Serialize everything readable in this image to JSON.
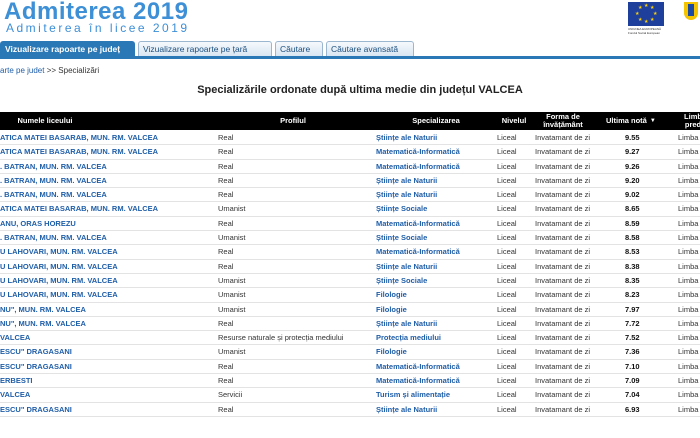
{
  "header": {
    "title": "Admiterea 2019",
    "subtitle": "Admiterea în licee 2019",
    "eu_caption": "UNIUNEA EUROPEANĂ Fondul Social European",
    "colors": {
      "brand": "#3d8fd6",
      "tab_active": "#2b78b7",
      "link": "#1f5ea8"
    }
  },
  "tabs": [
    {
      "label": "Vizualizare rapoarte pe județ",
      "active": true
    },
    {
      "label": "Vizualizare rapoarte pe țară",
      "active": false
    },
    {
      "label": "Căutare",
      "active": false
    },
    {
      "label": "Căutare avansată",
      "active": false
    }
  ],
  "breadcrumb": {
    "link": "arte pe judet",
    "separator": ">>",
    "current": "Specializări"
  },
  "page_title": "Specializările ordonate după ultima medie din județul VALCEA",
  "table": {
    "columns": [
      "Numele liceului",
      "Profilul",
      "Specializarea",
      "Nivelul",
      "Forma de învățământ",
      "Ultima notă",
      "Limb pred"
    ],
    "sort_icon": "sort-desc-icon",
    "rows": [
      {
        "school": "ATICA MATEI BASARAB, MUN. RM. VALCEA",
        "profile": "Real",
        "spec": "Științe ale Naturii",
        "level": "Liceal",
        "form": "Invatamant de zi",
        "grade": "9.55",
        "lang": "Limba"
      },
      {
        "school": "ATICA MATEI BASARAB, MUN. RM. VALCEA",
        "profile": "Real",
        "spec": "Matematică-Informatică",
        "level": "Liceal",
        "form": "Invatamant de zi",
        "grade": "9.27",
        "lang": "Limba"
      },
      {
        "school": ". BATRAN, MUN. RM. VALCEA",
        "profile": "Real",
        "spec": "Matematică-Informatică",
        "level": "Liceal",
        "form": "Invatamant de zi",
        "grade": "9.26",
        "lang": "Limba"
      },
      {
        "school": ". BATRAN, MUN. RM. VALCEA",
        "profile": "Real",
        "spec": "Științe ale Naturii",
        "level": "Liceal",
        "form": "Invatamant de zi",
        "grade": "9.20",
        "lang": "Limba"
      },
      {
        "school": ". BATRAN, MUN. RM. VALCEA",
        "profile": "Real",
        "spec": "Științe ale Naturii",
        "level": "Liceal",
        "form": "Invatamant de zi",
        "grade": "9.02",
        "lang": "Limba"
      },
      {
        "school": "ATICA MATEI BASARAB, MUN. RM. VALCEA",
        "profile": "Umanist",
        "spec": "Științe Sociale",
        "level": "Liceal",
        "form": "Invatamant de zi",
        "grade": "8.65",
        "lang": "Limba"
      },
      {
        "school": "ANU, ORAS HOREZU",
        "profile": "Real",
        "spec": "Matematică-Informatică",
        "level": "Liceal",
        "form": "Invatamant de zi",
        "grade": "8.59",
        "lang": "Limba"
      },
      {
        "school": ". BATRAN, MUN. RM. VALCEA",
        "profile": "Umanist",
        "spec": "Științe Sociale",
        "level": "Liceal",
        "form": "Invatamant de zi",
        "grade": "8.58",
        "lang": "Limba"
      },
      {
        "school": "U LAHOVARI, MUN. RM. VALCEA",
        "profile": "Real",
        "spec": "Matematică-Informatică",
        "level": "Liceal",
        "form": "Invatamant de zi",
        "grade": "8.53",
        "lang": "Limba"
      },
      {
        "school": "U LAHOVARI, MUN. RM. VALCEA",
        "profile": "Real",
        "spec": "Științe ale Naturii",
        "level": "Liceal",
        "form": "Invatamant de zi",
        "grade": "8.38",
        "lang": "Limba"
      },
      {
        "school": "U LAHOVARI, MUN. RM. VALCEA",
        "profile": "Umanist",
        "spec": "Științe Sociale",
        "level": "Liceal",
        "form": "Invatamant de zi",
        "grade": "8.35",
        "lang": "Limba"
      },
      {
        "school": "U LAHOVARI, MUN. RM. VALCEA",
        "profile": "Umanist",
        "spec": "Filologie",
        "level": "Liceal",
        "form": "Invatamant de zi",
        "grade": "8.23",
        "lang": "Limba"
      },
      {
        "school": "NU\", MUN. RM. VALCEA",
        "profile": "Umanist",
        "spec": "Filologie",
        "level": "Liceal",
        "form": "Invatamant de zi",
        "grade": "7.97",
        "lang": "Limba"
      },
      {
        "school": "NU\", MUN. RM. VALCEA",
        "profile": "Real",
        "spec": "Științe ale Naturii",
        "level": "Liceal",
        "form": "Invatamant de zi",
        "grade": "7.72",
        "lang": "Limba"
      },
      {
        "school": "VALCEA",
        "profile": "Resurse naturale și protecția mediului",
        "spec": "Protecția mediului",
        "level": "Liceal",
        "form": "Invatamant de zi",
        "grade": "7.52",
        "lang": "Limba"
      },
      {
        "school": "ESCU\" DRAGASANI",
        "profile": "Umanist",
        "spec": "Filologie",
        "level": "Liceal",
        "form": "Invatamant de zi",
        "grade": "7.36",
        "lang": "Limba"
      },
      {
        "school": "ESCU\" DRAGASANI",
        "profile": "Real",
        "spec": "Matematică-Informatică",
        "level": "Liceal",
        "form": "Invatamant de zi",
        "grade": "7.10",
        "lang": "Limba"
      },
      {
        "school": "ERBESTI",
        "profile": "Real",
        "spec": "Matematică-Informatică",
        "level": "Liceal",
        "form": "Invatamant de zi",
        "grade": "7.09",
        "lang": "Limba"
      },
      {
        "school": "VALCEA",
        "profile": "Servicii",
        "spec": "Turism și alimentație",
        "level": "Liceal",
        "form": "Invatamant de zi",
        "grade": "7.04",
        "lang": "Limba"
      },
      {
        "school": "ESCU\" DRAGASANI",
        "profile": "Real",
        "spec": "Științe ale Naturii",
        "level": "Liceal",
        "form": "Invatamant de zi",
        "grade": "6.93",
        "lang": "Limba"
      }
    ]
  }
}
